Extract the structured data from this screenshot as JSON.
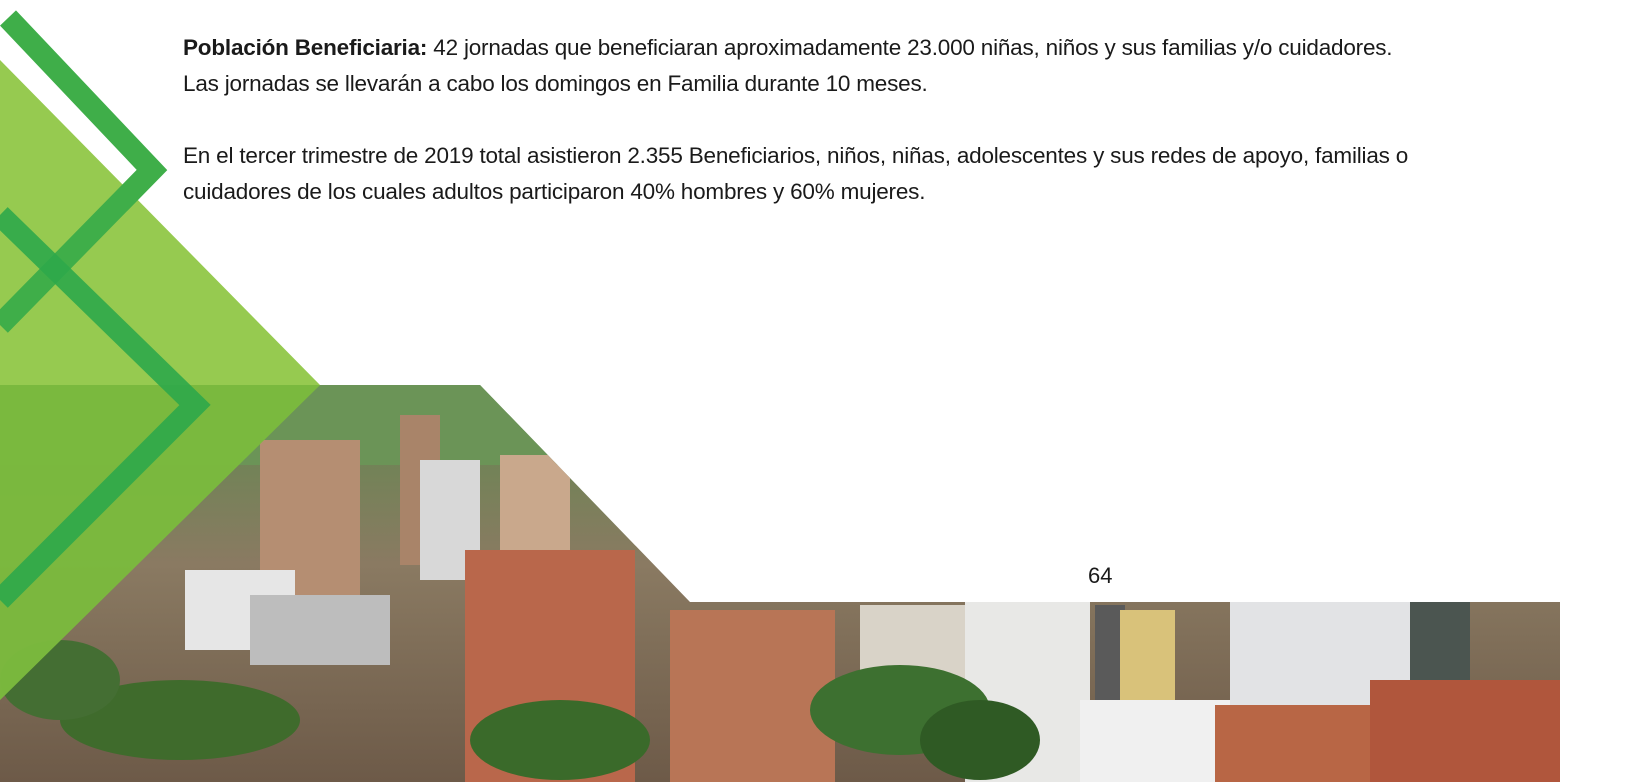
{
  "paragraphs": [
    {
      "label": "Población Beneficiaria:",
      "text": " 42 jornadas que beneficiaran aproximadamente 23.000 niñas, niños y sus familias y/o cuidadores. Las jornadas se llevarán a cabo los domingos en Familia durante 10 meses."
    },
    {
      "text": "En el tercer trimestre de 2019 total asistieron 2.355 Beneficiarios, niños, niñas, adolescentes y sus redes de apoyo, familias o cuidadores de los cuales adultos participaron 40% hombres y 60% mujeres."
    }
  ],
  "page_number": "64"
}
